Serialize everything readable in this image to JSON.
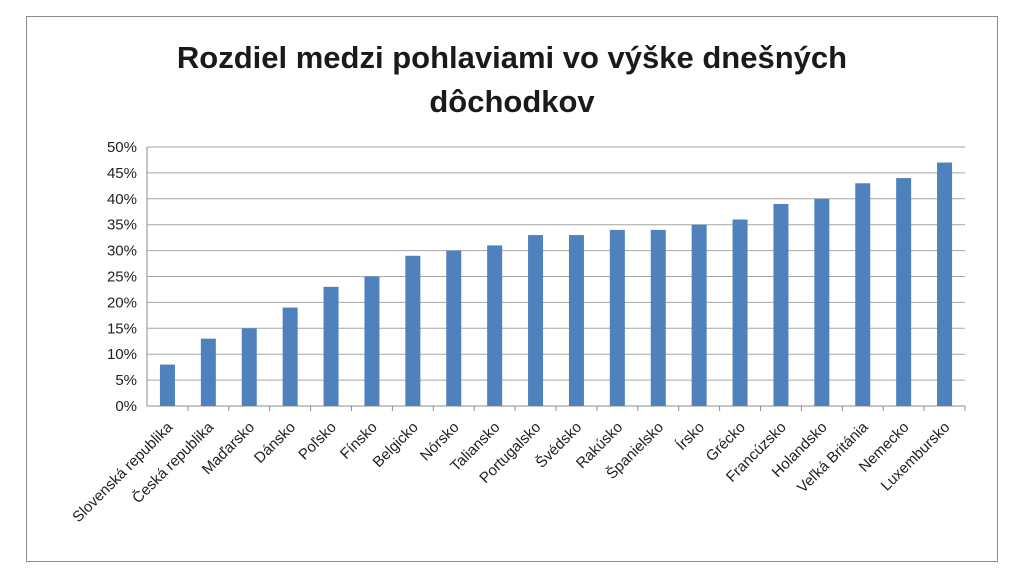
{
  "chart_data": {
    "type": "bar",
    "title_lines": [
      "Rozdiel medzi pohlaviami vo výške dnešných",
      "dôchodkov"
    ],
    "categories": [
      "Slovenská republika",
      "Česká republika",
      "Maďarsko",
      "Dánsko",
      "Poľsko",
      "Fínsko",
      "Belgicko",
      "Nórsko",
      "Taliansko",
      "Portugalsko",
      "Švédsko",
      "Rakúsko",
      "Španielsko",
      "Írsko",
      "Grécko",
      "Francúzsko",
      "Holandsko",
      "Veľká Británia",
      "Nemecko",
      "Luxembursko"
    ],
    "values": [
      8,
      13,
      15,
      19,
      23,
      25,
      29,
      30,
      31,
      33,
      33,
      34,
      34,
      35,
      36,
      39,
      40,
      43,
      44,
      47
    ],
    "yticks": [
      "0%",
      "5%",
      "10%",
      "15%",
      "20%",
      "25%",
      "30%",
      "35%",
      "40%",
      "45%",
      "50%"
    ],
    "ylim": [
      0,
      50
    ],
    "grid": true,
    "bar_color": "#4f81bd"
  }
}
